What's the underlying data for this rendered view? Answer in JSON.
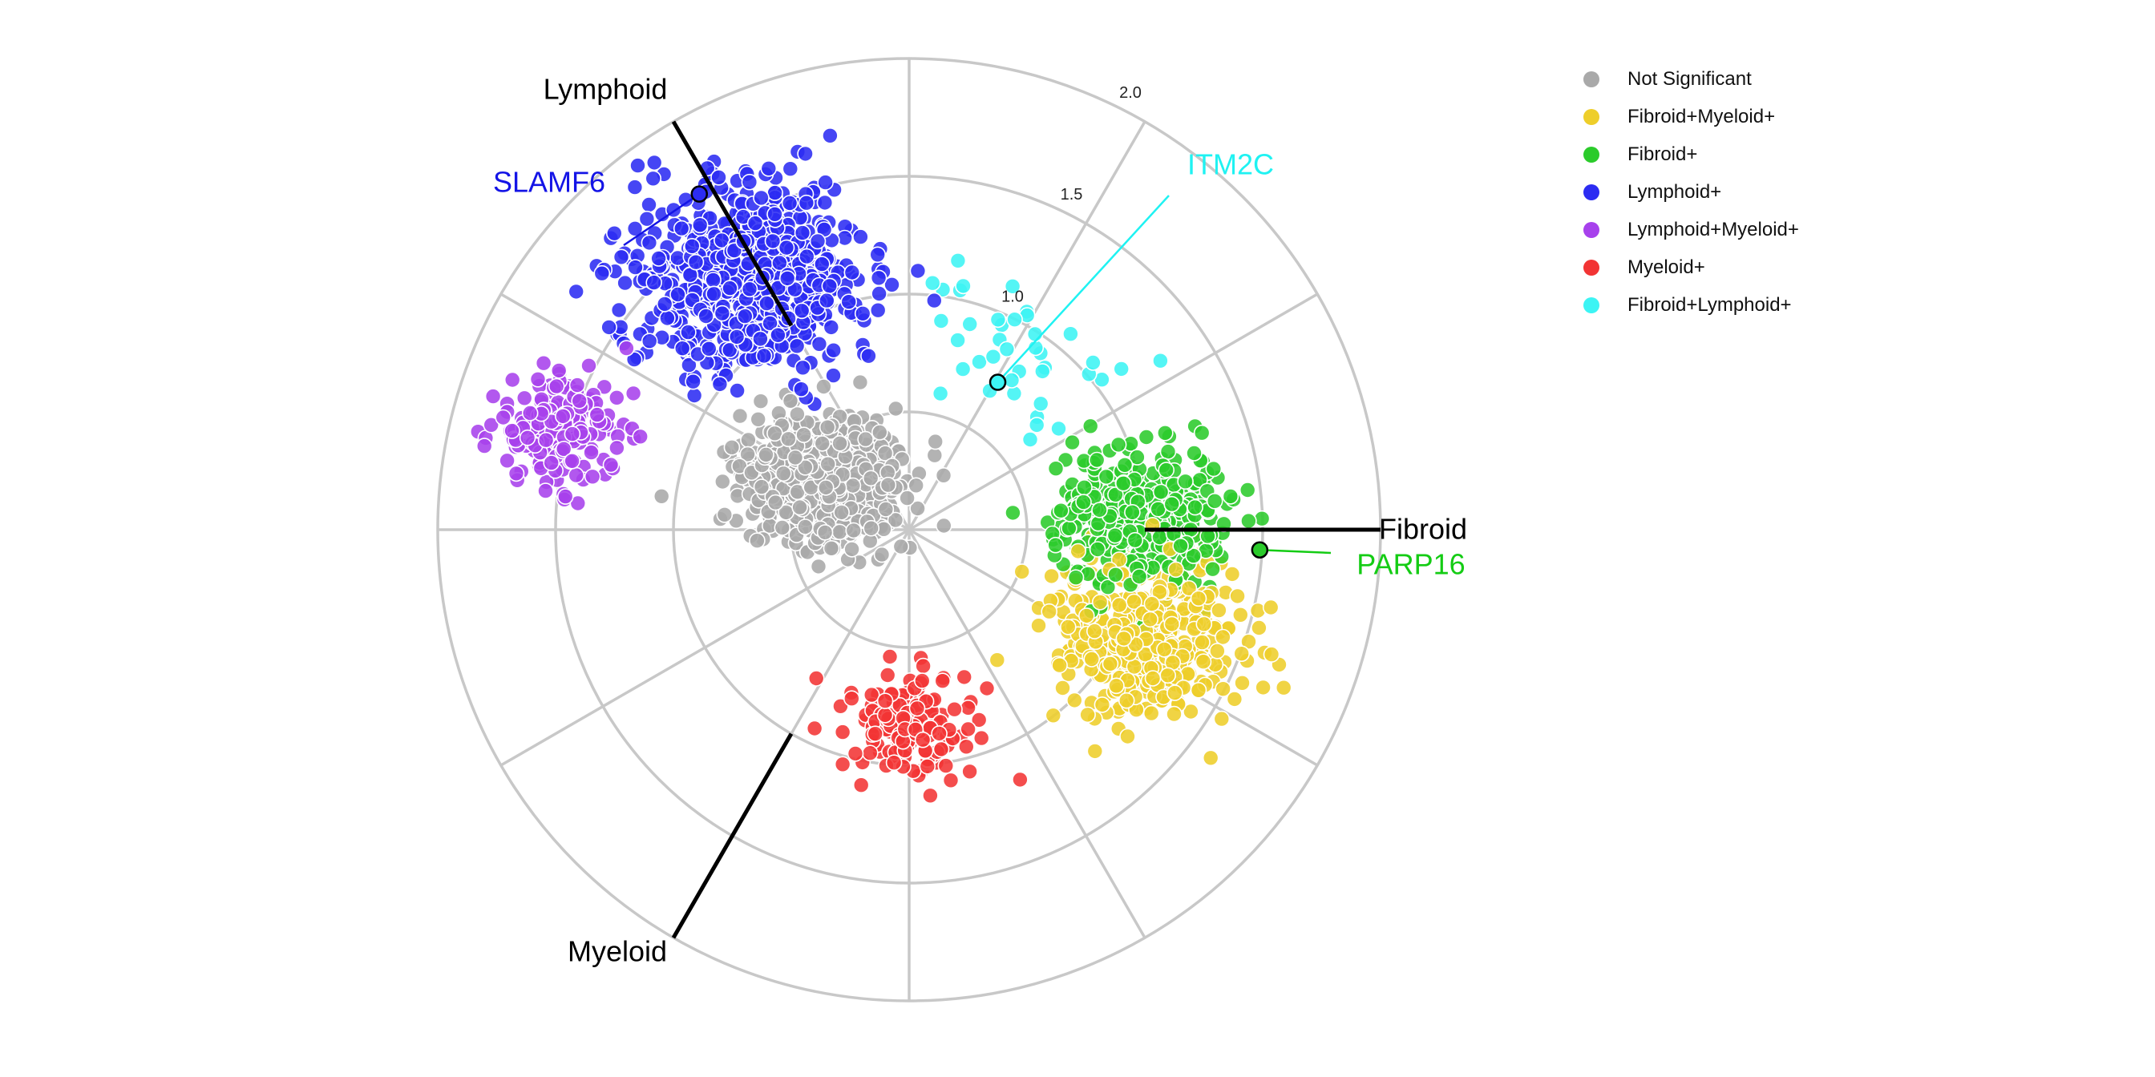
{
  "chart_data": {
    "type": "scatter",
    "subtype": "polar radial triangular scatter",
    "grid": true,
    "legend_placement": "right",
    "radial_axis": {
      "ticks": [
        0.5,
        1.0,
        1.5,
        2.0
      ],
      "tick_labels": [
        "1.0",
        "1.5",
        "2.0"
      ],
      "max": 2.0
    },
    "axes": [
      {
        "name": "Fibroid",
        "angle_deg": 0
      },
      {
        "name": "Lymphoid",
        "angle_deg": 120
      },
      {
        "name": "Myeloid",
        "angle_deg": 240
      }
    ],
    "categories": [
      {
        "name": "Not Significant",
        "color": "#A9A9A9"
      },
      {
        "name": "Fibroid+Myeloid+",
        "color": "#EECE2A"
      },
      {
        "name": "Fibroid+",
        "color": "#2BCB2B"
      },
      {
        "name": "Lymphoid+",
        "color": "#2C2CF2"
      },
      {
        "name": "Lymphoid+Myeloid+",
        "color": "#A741EC"
      },
      {
        "name": "Myeloid+",
        "color": "#F23434"
      },
      {
        "name": "Fibroid+Lymphoid+",
        "color": "#3CF4F4"
      }
    ],
    "clusters": [
      {
        "category": "Not Significant",
        "angle_deg": 150,
        "r": 0.42,
        "spread": 0.17,
        "count": 620
      },
      {
        "category": "Lymphoid+",
        "angle_deg": 122,
        "r": 1.25,
        "spread": 0.24,
        "count": 700
      },
      {
        "category": "Lymphoid+Myeloid+",
        "angle_deg": 164,
        "r": 1.55,
        "spread": 0.14,
        "count": 190
      },
      {
        "category": "Fibroid+",
        "angle_deg": 2,
        "r": 0.98,
        "spread": 0.18,
        "count": 380
      },
      {
        "category": "Fibroid+Myeloid+",
        "angle_deg": -25,
        "r": 1.12,
        "spread": 0.2,
        "count": 420
      },
      {
        "category": "Myeloid+",
        "angle_deg": -90,
        "r": 0.82,
        "spread": 0.13,
        "count": 160
      },
      {
        "category": "Fibroid+Lymphoid+",
        "angle_deg": 62,
        "r": 0.85,
        "spread": 0.22,
        "count": 40
      }
    ],
    "labeled_points": [
      {
        "label": "SLAMF6",
        "category": "Lymphoid+",
        "angle_deg": 122,
        "r": 1.68,
        "color": "#1414E6"
      },
      {
        "label": "ITM2C",
        "category": "Fibroid+Lymphoid+",
        "angle_deg": 59,
        "r": 0.73,
        "color": "#1FF2F2"
      },
      {
        "label": "PARP16",
        "category": "Fibroid+",
        "angle_deg": -3.3,
        "r": 1.49,
        "color": "#14CC14"
      }
    ]
  }
}
